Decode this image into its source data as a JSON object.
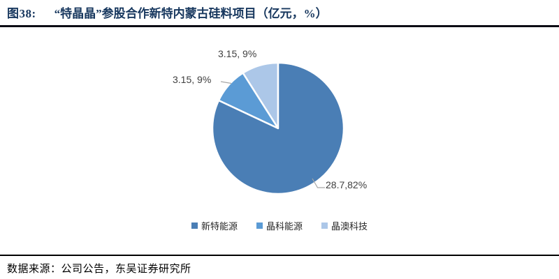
{
  "figure": {
    "label": "图38:",
    "title": "“特晶晶”参股合作新特内蒙古硅料项目（亿元，%）",
    "source": "数据来源：公司公告，东吴证券研究所"
  },
  "chart_data": {
    "type": "pie",
    "title": "“特晶晶”参股合作新特内蒙古硅料项目（亿元，%）",
    "unit": "亿元，%",
    "categories": [
      "新特能源",
      "晶科能源",
      "晶澳科技"
    ],
    "values": [
      28.7,
      3.15,
      3.15
    ],
    "percentages": [
      82,
      9,
      9
    ],
    "data_labels": [
      "28.7,82%",
      "3.15, 9%",
      "3.15, 9%"
    ],
    "colors": [
      "#4A7EB5",
      "#5B9BD5",
      "#ACC7E8"
    ],
    "slice_border_color": "#FFFFFF",
    "leader_line_color": "#A6A6A6",
    "label_color": "#404040",
    "title_color": "#17375E",
    "start_angle_deg": 0,
    "direction": "clockwise",
    "legend_position": "bottom"
  }
}
